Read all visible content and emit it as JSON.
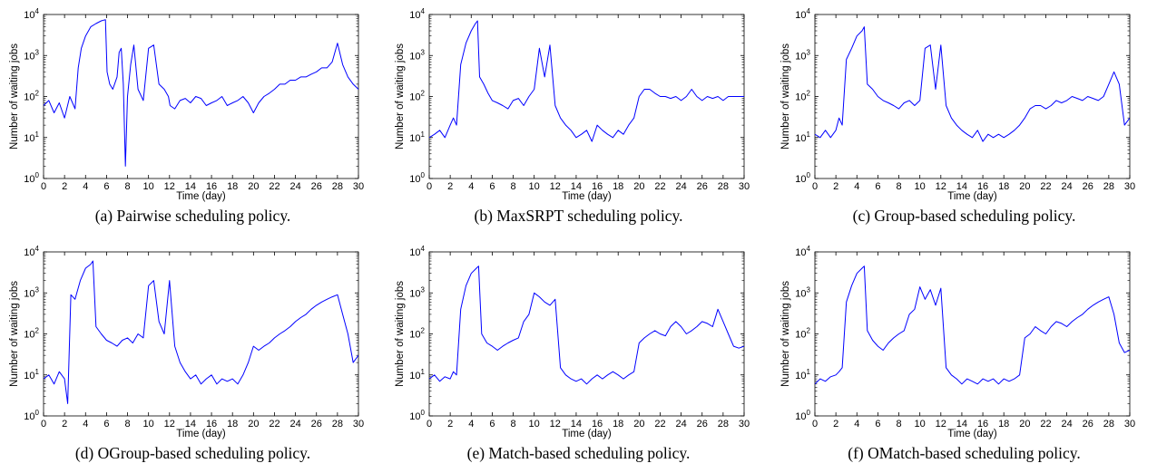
{
  "chart_data": [
    {
      "type": "line",
      "caption": "(a)  Pairwise scheduling policy.",
      "xlabel": "Time (day)",
      "ylabel": "Number of waiting jobs",
      "xlim": [
        0,
        30
      ],
      "ylim": [
        1,
        10000
      ],
      "yscale": "log",
      "xticks": [
        "0",
        "2",
        "4",
        "6",
        "8",
        "10",
        "12",
        "14",
        "16",
        "18",
        "20",
        "22",
        "24",
        "26",
        "28",
        "30"
      ],
      "yticks": [
        {
          "base": "10",
          "exp": "0"
        },
        {
          "base": "10",
          "exp": "1"
        },
        {
          "base": "10",
          "exp": "2"
        },
        {
          "base": "10",
          "exp": "3"
        },
        {
          "base": "10",
          "exp": "4"
        }
      ],
      "color": "#0000ff",
      "series": [
        {
          "x": [
            0,
            0.5,
            1,
            1.5,
            2,
            2.5,
            3,
            3.3,
            3.6,
            4,
            4.5,
            5,
            5.5,
            5.9,
            6.05,
            6.3,
            6.6,
            7,
            7.2,
            7.4,
            7.6,
            7.8,
            8,
            8.3,
            8.6,
            9,
            9.5,
            10,
            10.5,
            11,
            11.5,
            11.9,
            12.05,
            12.5,
            13,
            13.5,
            14,
            14.5,
            15,
            15.5,
            16,
            16.5,
            17,
            17.5,
            18,
            18.5,
            19,
            19.5,
            20,
            20.5,
            21,
            21.5,
            22,
            22.5,
            23,
            23.5,
            24,
            24.5,
            25,
            25.5,
            26,
            26.5,
            27,
            27.5,
            28,
            28.5,
            29,
            29.5,
            30
          ],
          "y": [
            60,
            80,
            40,
            70,
            30,
            100,
            50,
            500,
            1500,
            3000,
            5000,
            6000,
            7000,
            7500,
            400,
            200,
            150,
            300,
            1200,
            1500,
            200,
            2,
            100,
            600,
            1800,
            150,
            80,
            1500,
            1800,
            200,
            150,
            100,
            60,
            50,
            80,
            90,
            70,
            100,
            90,
            60,
            70,
            80,
            100,
            60,
            70,
            80,
            100,
            70,
            40,
            70,
            100,
            120,
            150,
            200,
            200,
            250,
            250,
            300,
            300,
            350,
            400,
            500,
            500,
            700,
            2000,
            600,
            300,
            200,
            150
          ]
        }
      ]
    },
    {
      "type": "line",
      "caption": "(b)  MaxSRPT scheduling policy.",
      "xlabel": "Time (day)",
      "ylabel": "Number of waiting jobs",
      "xlim": [
        0,
        30
      ],
      "ylim": [
        1,
        10000
      ],
      "yscale": "log",
      "xticks": [
        "0",
        "2",
        "4",
        "6",
        "8",
        "10",
        "12",
        "14",
        "16",
        "18",
        "20",
        "22",
        "24",
        "26",
        "28",
        "30"
      ],
      "yticks": [
        {
          "base": "10",
          "exp": "0"
        },
        {
          "base": "10",
          "exp": "1"
        },
        {
          "base": "10",
          "exp": "2"
        },
        {
          "base": "10",
          "exp": "3"
        },
        {
          "base": "10",
          "exp": "4"
        }
      ],
      "color": "#0000ff",
      "series": [
        {
          "x": [
            0,
            0.5,
            1,
            1.5,
            2,
            2.3,
            2.6,
            3,
            3.5,
            4,
            4.4,
            4.6,
            4.8,
            5.2,
            5.6,
            6,
            6.5,
            7,
            7.5,
            8,
            8.5,
            9,
            9.5,
            10,
            10.5,
            11,
            11.5,
            12,
            12.5,
            13,
            13.5,
            14,
            14.5,
            15,
            15.5,
            16,
            16.5,
            17,
            17.5,
            18,
            18.5,
            19,
            19.5,
            20,
            20.5,
            21,
            21.5,
            22,
            22.5,
            23,
            23.5,
            24,
            24.5,
            25,
            25.5,
            26,
            26.5,
            27,
            27.5,
            28,
            28.5,
            29,
            29.5,
            30
          ],
          "y": [
            10,
            12,
            15,
            10,
            20,
            30,
            20,
            600,
            2000,
            4000,
            6000,
            7000,
            300,
            200,
            120,
            80,
            70,
            60,
            50,
            80,
            90,
            60,
            100,
            150,
            1500,
            300,
            1800,
            60,
            30,
            20,
            15,
            10,
            12,
            15,
            8,
            20,
            15,
            12,
            10,
            15,
            12,
            20,
            30,
            100,
            150,
            150,
            120,
            100,
            100,
            90,
            100,
            80,
            100,
            150,
            100,
            80,
            100,
            90,
            100,
            80,
            100,
            100,
            100,
            100
          ]
        }
      ]
    },
    {
      "type": "line",
      "caption": "(c)  Group-based scheduling policy.",
      "xlabel": "Time (day)",
      "ylabel": "Number of waiting jobs",
      "xlim": [
        0,
        30
      ],
      "ylim": [
        1,
        10000
      ],
      "yscale": "log",
      "xticks": [
        "0",
        "2",
        "4",
        "6",
        "8",
        "10",
        "12",
        "14",
        "16",
        "18",
        "20",
        "22",
        "24",
        "26",
        "28",
        "30"
      ],
      "yticks": [
        {
          "base": "10",
          "exp": "0"
        },
        {
          "base": "10",
          "exp": "1"
        },
        {
          "base": "10",
          "exp": "2"
        },
        {
          "base": "10",
          "exp": "3"
        },
        {
          "base": "10",
          "exp": "4"
        }
      ],
      "color": "#0000ff",
      "series": [
        {
          "x": [
            0,
            0.5,
            1,
            1.5,
            2,
            2.3,
            2.6,
            3,
            3.5,
            4,
            4.5,
            4.7,
            5,
            5.5,
            6,
            6.5,
            7,
            7.5,
            8,
            8.5,
            9,
            9.5,
            10,
            10.5,
            11,
            11.5,
            12,
            12.5,
            13,
            13.5,
            14,
            14.5,
            15,
            15.5,
            16,
            16.5,
            17,
            17.5,
            18,
            18.5,
            19,
            19.5,
            20,
            20.5,
            21,
            21.5,
            22,
            22.5,
            23,
            23.5,
            24,
            24.5,
            25,
            25.5,
            26,
            26.5,
            27,
            27.5,
            28,
            28.5,
            29,
            29.5,
            30
          ],
          "y": [
            12,
            10,
            15,
            10,
            15,
            30,
            20,
            800,
            1500,
            3000,
            4000,
            5000,
            200,
            150,
            100,
            80,
            70,
            60,
            50,
            70,
            80,
            60,
            80,
            1500,
            1800,
            150,
            1800,
            60,
            30,
            20,
            15,
            12,
            10,
            15,
            8,
            12,
            10,
            12,
            10,
            12,
            15,
            20,
            30,
            50,
            60,
            60,
            50,
            60,
            80,
            70,
            80,
            100,
            90,
            80,
            100,
            90,
            80,
            100,
            200,
            400,
            200,
            20,
            30
          ]
        }
      ]
    },
    {
      "type": "line",
      "caption": "(d)  OGroup-based scheduling policy.",
      "xlabel": "Time (day)",
      "ylabel": "Number of waiting jobs",
      "xlim": [
        0,
        30
      ],
      "ylim": [
        1,
        10000
      ],
      "yscale": "log",
      "xticks": [
        "0",
        "2",
        "4",
        "6",
        "8",
        "10",
        "12",
        "14",
        "16",
        "18",
        "20",
        "22",
        "24",
        "26",
        "28",
        "30"
      ],
      "yticks": [
        {
          "base": "10",
          "exp": "0"
        },
        {
          "base": "10",
          "exp": "1"
        },
        {
          "base": "10",
          "exp": "2"
        },
        {
          "base": "10",
          "exp": "3"
        },
        {
          "base": "10",
          "exp": "4"
        }
      ],
      "color": "#0000ff",
      "series": [
        {
          "x": [
            0,
            0.5,
            1,
            1.5,
            2,
            2.3,
            2.6,
            3,
            3.5,
            4,
            4.5,
            4.7,
            5,
            5.5,
            6,
            6.5,
            7,
            7.5,
            8,
            8.5,
            9,
            9.5,
            10,
            10.5,
            11,
            11.5,
            12,
            12.5,
            13,
            13.5,
            14,
            14.5,
            15,
            15.5,
            16,
            16.5,
            17,
            17.5,
            18,
            18.5,
            19,
            19.5,
            20,
            20.5,
            21,
            21.5,
            22,
            22.5,
            23,
            23.5,
            24,
            24.5,
            25,
            25.5,
            26,
            26.5,
            27,
            27.5,
            28,
            28.5,
            29,
            29.5,
            30
          ],
          "y": [
            8,
            10,
            6,
            12,
            8,
            2,
            900,
            700,
            2000,
            4000,
            5000,
            6000,
            150,
            100,
            70,
            60,
            50,
            70,
            80,
            60,
            100,
            80,
            1500,
            2000,
            200,
            100,
            2000,
            50,
            20,
            12,
            8,
            10,
            6,
            8,
            10,
            6,
            8,
            7,
            8,
            6,
            10,
            20,
            50,
            40,
            50,
            60,
            80,
            100,
            120,
            150,
            200,
            250,
            300,
            400,
            500,
            600,
            700,
            800,
            900,
            300,
            100,
            20,
            30
          ]
        }
      ]
    },
    {
      "type": "line",
      "caption": "(e)  Match-based scheduling policy.",
      "xlabel": "Time (day)",
      "ylabel": "Number of waiting jobs",
      "xlim": [
        0,
        30
      ],
      "ylim": [
        1,
        10000
      ],
      "yscale": "log",
      "xticks": [
        "0",
        "2",
        "4",
        "6",
        "8",
        "10",
        "12",
        "14",
        "16",
        "18",
        "20",
        "22",
        "24",
        "26",
        "28",
        "30"
      ],
      "yticks": [
        {
          "base": "10",
          "exp": "0"
        },
        {
          "base": "10",
          "exp": "1"
        },
        {
          "base": "10",
          "exp": "2"
        },
        {
          "base": "10",
          "exp": "3"
        },
        {
          "base": "10",
          "exp": "4"
        }
      ],
      "color": "#0000ff",
      "series": [
        {
          "x": [
            0,
            0.5,
            1,
            1.5,
            2,
            2.3,
            2.6,
            3,
            3.5,
            4,
            4.5,
            4.7,
            5,
            5.5,
            6,
            6.5,
            7,
            7.5,
            8,
            8.5,
            9,
            9.5,
            10,
            10.5,
            11,
            11.5,
            12,
            12.5,
            13,
            13.5,
            14,
            14.5,
            15,
            15.5,
            16,
            16.5,
            17,
            17.5,
            18,
            18.5,
            19,
            19.5,
            20,
            20.5,
            21,
            21.5,
            22,
            22.5,
            23,
            23.5,
            24,
            24.5,
            25,
            25.5,
            26,
            26.5,
            27,
            27.5,
            28,
            28.5,
            29,
            29.5,
            30
          ],
          "y": [
            8,
            10,
            7,
            9,
            8,
            12,
            10,
            400,
            1500,
            3000,
            4000,
            4500,
            100,
            60,
            50,
            40,
            50,
            60,
            70,
            80,
            200,
            300,
            1000,
            800,
            600,
            500,
            700,
            15,
            10,
            8,
            7,
            8,
            6,
            8,
            10,
            8,
            10,
            12,
            10,
            8,
            10,
            12,
            60,
            80,
            100,
            120,
            100,
            90,
            150,
            200,
            150,
            100,
            120,
            150,
            200,
            180,
            150,
            400,
            200,
            100,
            50,
            45,
            50
          ]
        }
      ]
    },
    {
      "type": "line",
      "caption": "(f)  OMatch-based scheduling policy.",
      "xlabel": "Time (day)",
      "ylabel": "Number of waiting jobs",
      "xlim": [
        0,
        30
      ],
      "ylim": [
        1,
        10000
      ],
      "yscale": "log",
      "xticks": [
        "0",
        "2",
        "4",
        "6",
        "8",
        "10",
        "12",
        "14",
        "16",
        "18",
        "20",
        "22",
        "24",
        "26",
        "28",
        "30"
      ],
      "yticks": [
        {
          "base": "10",
          "exp": "0"
        },
        {
          "base": "10",
          "exp": "1"
        },
        {
          "base": "10",
          "exp": "2"
        },
        {
          "base": "10",
          "exp": "3"
        },
        {
          "base": "10",
          "exp": "4"
        }
      ],
      "color": "#0000ff",
      "series": [
        {
          "x": [
            0,
            0.5,
            1,
            1.5,
            2,
            2.3,
            2.6,
            3,
            3.5,
            4,
            4.5,
            4.7,
            5,
            5.5,
            6,
            6.5,
            7,
            7.5,
            8,
            8.5,
            9,
            9.5,
            10,
            10.5,
            11,
            11.5,
            12,
            12.5,
            13,
            13.5,
            14,
            14.5,
            15,
            15.5,
            16,
            16.5,
            17,
            17.5,
            18,
            18.5,
            19,
            19.5,
            20,
            20.5,
            21,
            21.5,
            22,
            22.5,
            23,
            23.5,
            24,
            24.5,
            25,
            25.5,
            26,
            26.5,
            27,
            27.5,
            28,
            28.5,
            29,
            29.5,
            30
          ],
          "y": [
            6,
            8,
            7,
            9,
            10,
            12,
            15,
            600,
            1500,
            3000,
            4000,
            4500,
            120,
            70,
            50,
            40,
            60,
            80,
            100,
            120,
            300,
            400,
            1400,
            700,
            1200,
            500,
            1300,
            15,
            10,
            8,
            6,
            8,
            7,
            6,
            8,
            7,
            8,
            6,
            8,
            7,
            8,
            10,
            80,
            100,
            150,
            120,
            100,
            150,
            200,
            180,
            150,
            200,
            250,
            300,
            400,
            500,
            600,
            700,
            800,
            300,
            60,
            35,
            40
          ]
        }
      ]
    }
  ]
}
